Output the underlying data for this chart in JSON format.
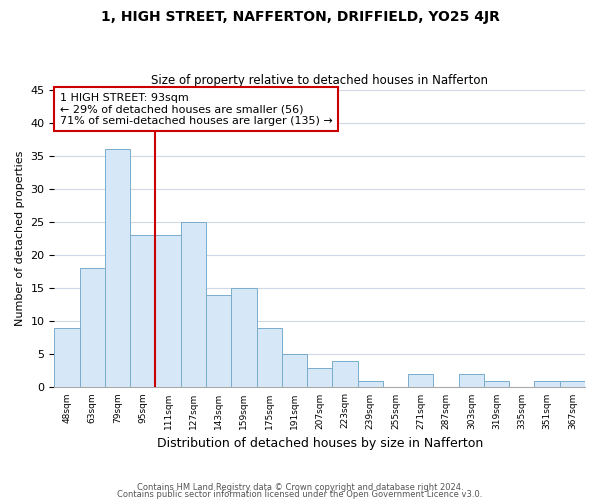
{
  "title": "1, HIGH STREET, NAFFERTON, DRIFFIELD, YO25 4JR",
  "subtitle": "Size of property relative to detached houses in Nafferton",
  "xlabel": "Distribution of detached houses by size in Nafferton",
  "ylabel": "Number of detached properties",
  "bar_labels": [
    "48sqm",
    "63sqm",
    "79sqm",
    "95sqm",
    "111sqm",
    "127sqm",
    "143sqm",
    "159sqm",
    "175sqm",
    "191sqm",
    "207sqm",
    "223sqm",
    "239sqm",
    "255sqm",
    "271sqm",
    "287sqm",
    "303sqm",
    "319sqm",
    "335sqm",
    "351sqm",
    "367sqm"
  ],
  "bar_values": [
    9,
    18,
    36,
    23,
    23,
    25,
    14,
    15,
    9,
    5,
    3,
    4,
    1,
    0,
    2,
    0,
    2,
    1,
    0,
    1,
    1
  ],
  "bar_color": "#d6e8f7",
  "bar_edge_color": "#7aaccc",
  "highlight_index": 3,
  "highlight_line_color": "#cc0000",
  "annotation_title": "1 HIGH STREET: 93sqm",
  "annotation_line1": "← 29% of detached houses are smaller (56)",
  "annotation_line2": "71% of semi-detached houses are larger (135) →",
  "annotation_box_color": "#ffffff",
  "annotation_box_edge": "#cc0000",
  "ylim": [
    0,
    45
  ],
  "yticks": [
    0,
    5,
    10,
    15,
    20,
    25,
    30,
    35,
    40,
    45
  ],
  "footnote1": "Contains HM Land Registry data © Crown copyright and database right 2024.",
  "footnote2": "Contains public sector information licensed under the Open Government Licence v3.0.",
  "bg_color": "#ffffff",
  "grid_color": "#d0d8e8"
}
